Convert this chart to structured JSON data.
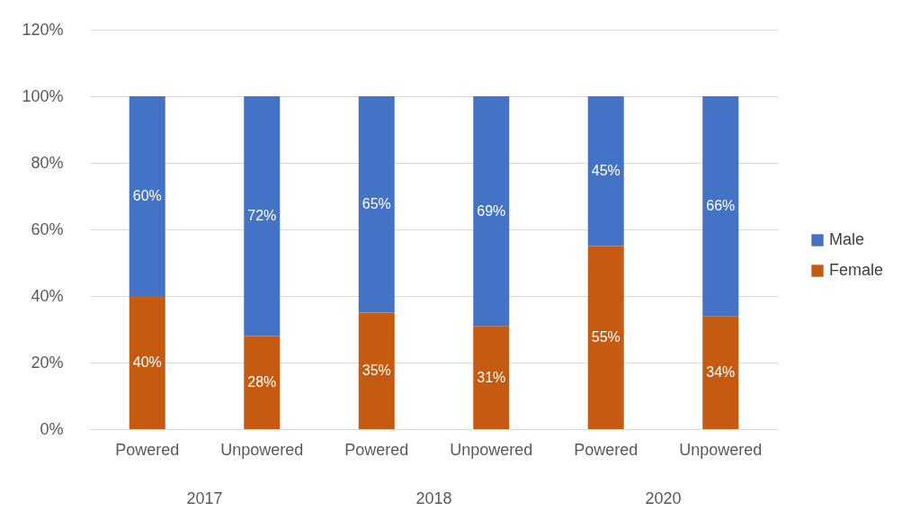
{
  "chart_data": {
    "type": "bar",
    "stacked": true,
    "categories": [
      "Powered",
      "Unpowered",
      "Powered",
      "Unpowered",
      "Powered",
      "Unpowered"
    ],
    "series": [
      {
        "name": "Female",
        "color": "#c55a11",
        "values": [
          40,
          28,
          35,
          31,
          55,
          34
        ],
        "value_labels": [
          "40%",
          "28%",
          "35%",
          "31%",
          "55%",
          "34%"
        ]
      },
      {
        "name": "Male",
        "color": "#4472c4",
        "values": [
          60,
          72,
          65,
          69,
          45,
          66
        ],
        "value_labels": [
          "60%",
          "72%",
          "65%",
          "69%",
          "45%",
          "66%"
        ]
      }
    ],
    "ylim": [
      0,
      120
    ],
    "yticks": [
      {
        "value": 0,
        "label": "0%"
      },
      {
        "value": 20,
        "label": "20%"
      },
      {
        "value": 40,
        "label": "40%"
      },
      {
        "value": 60,
        "label": "60%"
      },
      {
        "value": 80,
        "label": "80%"
      },
      {
        "value": 100,
        "label": "100%"
      },
      {
        "value": 120,
        "label": "120%"
      }
    ],
    "annotations": [
      "2017",
      "2018",
      "2020"
    ],
    "grid": "y",
    "legend": "right"
  }
}
